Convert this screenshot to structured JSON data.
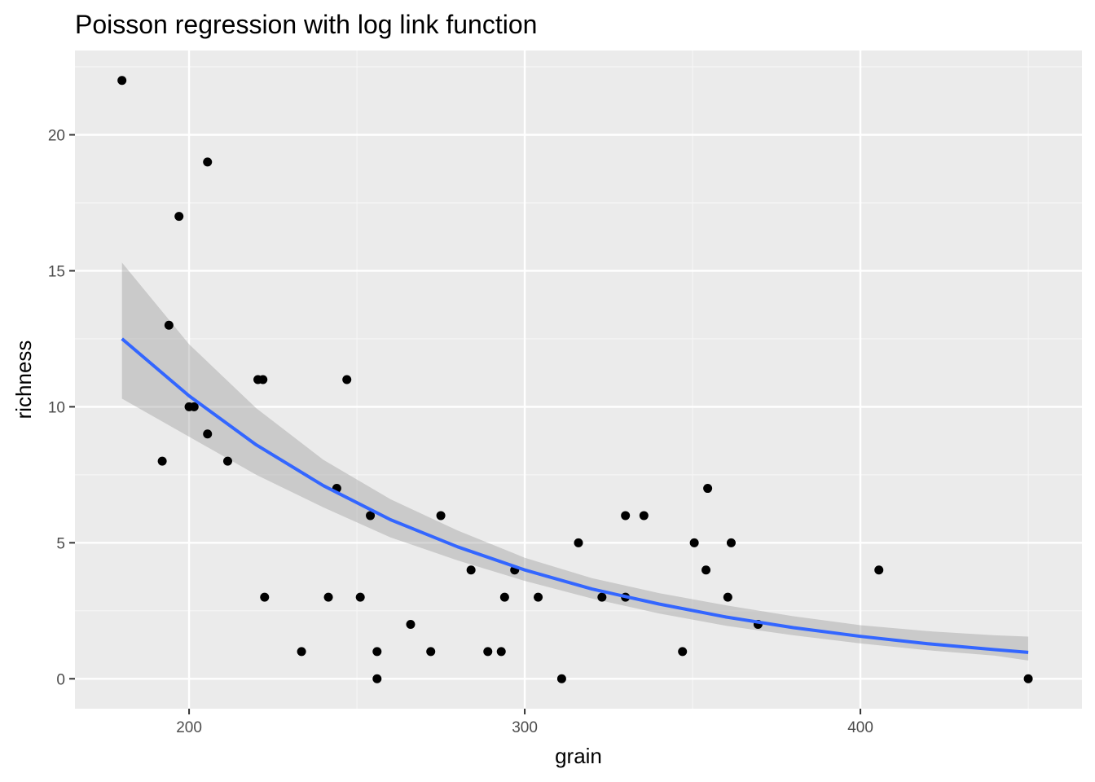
{
  "chart_data": {
    "type": "scatter",
    "title": "Poisson regression with log link function",
    "xlabel": "grain",
    "ylabel": "richness",
    "xlim": [
      166,
      466
    ],
    "ylim": [
      -1.1,
      23.1
    ],
    "x_ticks": [
      200,
      300,
      400
    ],
    "x_tick_labels": [
      "200",
      "300",
      "400"
    ],
    "y_ticks": [
      0,
      5,
      10,
      15,
      20
    ],
    "y_tick_labels": [
      "0",
      "5",
      "10",
      "15",
      "20"
    ],
    "grid": true,
    "legend": "none",
    "colors": {
      "panel_background": "#ebebeb",
      "grid_major": "#ffffff",
      "grid_minor": "#f6f6f6",
      "points": "#000000",
      "fit_line": "#3366ff",
      "ribbon": "#999999"
    },
    "points": {
      "x": [
        180,
        205.5,
        197,
        194,
        192,
        200,
        201.5,
        205.5,
        211.5,
        220.5,
        222,
        222.5,
        247,
        244,
        233.5,
        241.5,
        251,
        254,
        256,
        256,
        266,
        272,
        275,
        284,
        289,
        293,
        294,
        297,
        304,
        311,
        316,
        323,
        330,
        330,
        335.5,
        347,
        350.5,
        354,
        354.5,
        360.5,
        361.5,
        369.5,
        405.5,
        450
      ],
      "y": [
        22,
        19,
        17,
        13,
        8,
        10,
        10,
        9,
        8,
        11,
        11,
        3,
        11,
        7,
        1,
        3,
        3,
        6,
        1,
        0,
        2,
        1,
        6,
        4,
        1,
        1,
        3,
        4,
        3,
        0,
        5,
        3,
        6,
        3,
        6,
        1,
        5,
        4,
        7,
        3,
        5,
        2,
        4,
        0
      ]
    },
    "fit": {
      "x": [
        180,
        200,
        220,
        240,
        260,
        280,
        300,
        320,
        340,
        360,
        380,
        400,
        420,
        440,
        450
      ],
      "y": [
        12.5,
        10.4,
        8.6,
        7.1,
        5.85,
        4.85,
        4.0,
        3.3,
        2.75,
        2.27,
        1.88,
        1.56,
        1.29,
        1.07,
        0.97
      ],
      "ymin": [
        10.3,
        8.9,
        7.5,
        6.3,
        5.2,
        4.35,
        3.6,
        2.95,
        2.4,
        1.95,
        1.6,
        1.3,
        1.05,
        0.85,
        0.67
      ],
      "ymax": [
        15.3,
        12.3,
        9.95,
        8.05,
        6.6,
        5.45,
        4.45,
        3.7,
        3.15,
        2.7,
        2.3,
        1.97,
        1.75,
        1.6,
        1.55
      ]
    }
  }
}
